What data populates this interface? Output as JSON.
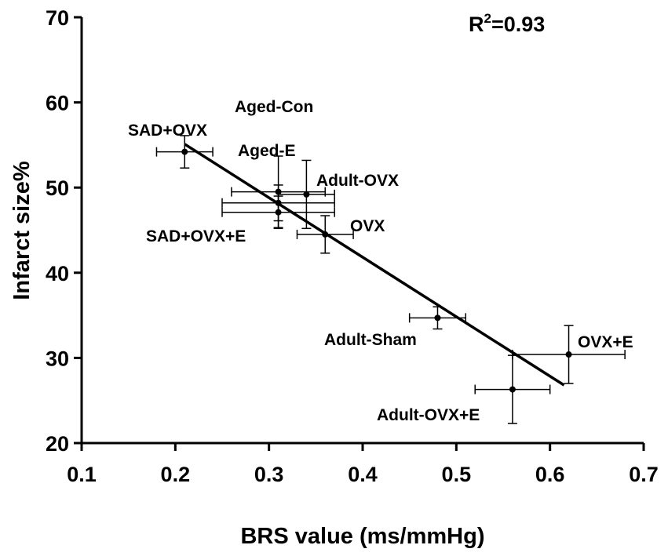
{
  "chart_data": {
    "type": "scatter",
    "title": "",
    "xlabel": "BRS value (ms/mmHg)",
    "ylabel": "Infarct size%",
    "xlim": [
      0.1,
      0.7
    ],
    "ylim": [
      20,
      70
    ],
    "xticks": [
      "0.1",
      "0.2",
      "0.3",
      "0.4",
      "0.5",
      "0.6",
      "0.7"
    ],
    "yticks": [
      "20",
      "30",
      "40",
      "50",
      "60",
      "70"
    ],
    "annotation": {
      "r2_label": "R",
      "r2_sup": "2",
      "r2_value": "=0.93"
    },
    "fit_line": {
      "x": [
        0.21,
        0.615
      ],
      "y": [
        55.1,
        26.8
      ]
    },
    "points": [
      {
        "label": "SAD+OVX",
        "x": 0.21,
        "y": 54.2,
        "xerr": 0.03,
        "yerr": 1.9
      },
      {
        "label": "Aged-Con",
        "x": 0.31,
        "y": 49.5,
        "xerr": 0.05,
        "yerr": 4.2
      },
      {
        "label": "Aged-E",
        "x": 0.31,
        "y": 48.2,
        "xerr": 0.06,
        "yerr": 2.1
      },
      {
        "label": "Adult-OVX",
        "x": 0.34,
        "y": 49.2,
        "xerr": 0.03,
        "yerr": 4.0
      },
      {
        "label": "SAD+OVX+E",
        "x": 0.31,
        "y": 47.1,
        "xerr": 0.06,
        "yerr": 1.9
      },
      {
        "label": "OVX",
        "x": 0.36,
        "y": 44.5,
        "xerr": 0.03,
        "yerr": 2.2
      },
      {
        "label": "Adult-Sham",
        "x": 0.48,
        "y": 34.7,
        "xerr": 0.03,
        "yerr": 1.3
      },
      {
        "label": "OVX+E",
        "x": 0.62,
        "y": 30.4,
        "xerr": 0.06,
        "yerr": 3.4
      },
      {
        "label": "Adult-OVX+E",
        "x": 0.56,
        "y": 26.3,
        "xerr": 0.04,
        "yerr": 4.0
      }
    ]
  }
}
